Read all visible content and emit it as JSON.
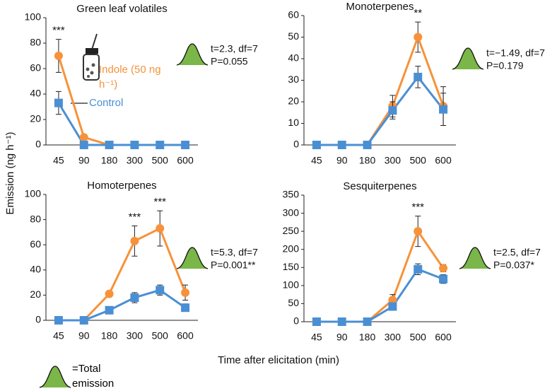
{
  "ylabel": "Emission (ng h⁻¹)",
  "xlabel": "Time after elicitation (min)",
  "legend_note": "=Total emission",
  "chart_data": [
    {
      "type": "line",
      "title": "Green leaf volatiles",
      "categories": [
        "45",
        "90",
        "180",
        "300",
        "500",
        "600"
      ],
      "ylim": [
        0,
        100
      ],
      "yticks": [
        0,
        20,
        40,
        60,
        80,
        100
      ],
      "series": [
        {
          "name": "Indole (50 ng h⁻¹)",
          "color": "#f7923a",
          "marker": "circle",
          "values": [
            70,
            6,
            0,
            0,
            0,
            0
          ],
          "errors": [
            13,
            0,
            0,
            0,
            0,
            0
          ]
        },
        {
          "name": "Control",
          "color": "#4a8fd4",
          "marker": "square",
          "values": [
            33,
            0,
            0,
            0,
            0,
            0
          ],
          "errors": [
            9,
            0,
            0,
            0,
            0,
            0
          ]
        }
      ],
      "annotations": [
        {
          "text": "***",
          "x": "45"
        }
      ],
      "stats": [
        "t=2.3, df=7",
        "P=0.055"
      ]
    },
    {
      "type": "line",
      "title": "Monoterpenes",
      "categories": [
        "45",
        "90",
        "180",
        "300",
        "500",
        "600"
      ],
      "ylim": [
        0,
        60
      ],
      "yticks": [
        0,
        10,
        20,
        30,
        40,
        50,
        60
      ],
      "series": [
        {
          "color": "#f7923a",
          "marker": "circle",
          "values": [
            0,
            0,
            0,
            18,
            50,
            18
          ],
          "errors": [
            0,
            0,
            0,
            5,
            7,
            9
          ]
        },
        {
          "color": "#4a8fd4",
          "marker": "square",
          "values": [
            0,
            0,
            0,
            16,
            31.5,
            16.5
          ],
          "errors": [
            0,
            0,
            0,
            4,
            5,
            7.5
          ]
        }
      ],
      "annotations": [
        {
          "text": "**",
          "x": "500"
        }
      ],
      "stats": [
        "t=−1.49, df=7",
        "P=0.179"
      ]
    },
    {
      "type": "line",
      "title": "Homoterpenes",
      "categories": [
        "45",
        "90",
        "180",
        "300",
        "500",
        "600"
      ],
      "ylim": [
        0,
        100
      ],
      "yticks": [
        0,
        20,
        40,
        60,
        80,
        100
      ],
      "series": [
        {
          "color": "#f7923a",
          "marker": "circle",
          "values": [
            0,
            0,
            21,
            63,
            73,
            22
          ],
          "errors": [
            0,
            0,
            0,
            12,
            14,
            6
          ]
        },
        {
          "color": "#4a8fd4",
          "marker": "square",
          "values": [
            0,
            0,
            8,
            18,
            24,
            10
          ],
          "errors": [
            0,
            0,
            0,
            4,
            4,
            3
          ]
        }
      ],
      "annotations": [
        {
          "text": "***",
          "x": "300"
        },
        {
          "text": "***",
          "x": "500"
        }
      ],
      "stats": [
        "t=5.3, df=7",
        "P=0.001**"
      ]
    },
    {
      "type": "line",
      "title": "Sesquiterpenes",
      "categories": [
        "45",
        "90",
        "180",
        "300",
        "500",
        "600"
      ],
      "ylim": [
        0,
        350
      ],
      "yticks": [
        0,
        50,
        100,
        150,
        200,
        250,
        300,
        350
      ],
      "series": [
        {
          "color": "#f7923a",
          "marker": "circle",
          "values": [
            0,
            0,
            0,
            60,
            250,
            148
          ],
          "errors": [
            0,
            0,
            0,
            15,
            42,
            10
          ]
        },
        {
          "color": "#4a8fd4",
          "marker": "square",
          "values": [
            0,
            0,
            0,
            42,
            145,
            118
          ],
          "errors": [
            0,
            0,
            0,
            8,
            15,
            12
          ]
        }
      ],
      "annotations": [
        {
          "text": "***",
          "x": "500"
        }
      ],
      "stats": [
        "t=2.5, df=7",
        "P=0.037*"
      ]
    }
  ]
}
